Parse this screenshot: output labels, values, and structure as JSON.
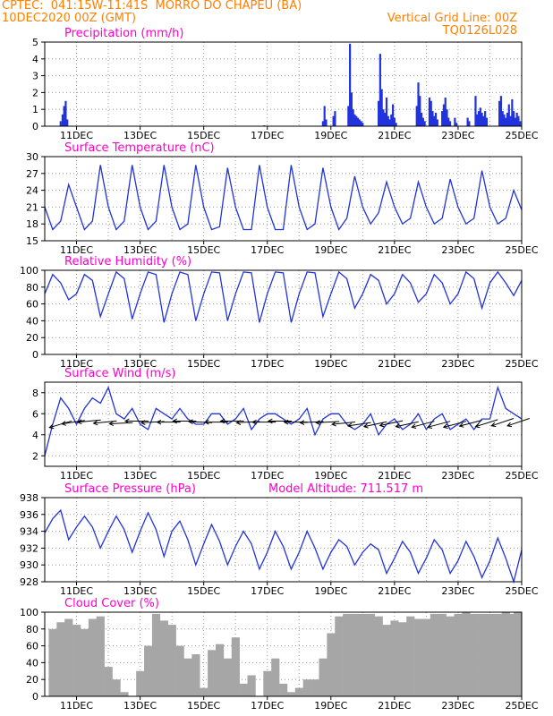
{
  "header": {
    "line1_left": "CPTEC:  041:15W-11:41S  MORRO DO CHAPEU (BA)",
    "line2_left": "10DEC2020 00Z (GMT)",
    "line1_right": "Vertical Grid Line: 00Z",
    "line2_right": "TQ0126L028"
  },
  "colors": {
    "header": "#ff7f00",
    "title": "#ff00cc",
    "line": "#2233dd",
    "bar": "#2233dd",
    "cloud": "#a6a6a6",
    "wind_vector": "#000000"
  },
  "x_axis": {
    "unit": "day of December 2020 (00Z)",
    "range": [
      10,
      25
    ],
    "tick_labels": [
      "11DEC",
      "13DEC",
      "15DEC",
      "17DEC",
      "19DEC",
      "21DEC",
      "23DEC",
      "25DEC"
    ],
    "tick_positions": [
      11,
      13,
      15,
      17,
      19,
      21,
      23,
      25
    ]
  },
  "model_altitude_label": "Model Altitude: 711.517 m",
  "chart_data": [
    {
      "id": "precip",
      "type": "bar",
      "title": "Precipitation (mm/h)",
      "ylim": [
        0,
        5
      ],
      "yticks": [
        0,
        1,
        2,
        3,
        4,
        5
      ],
      "x": [
        10.5,
        10.56,
        10.61,
        10.66,
        10.71,
        16.9,
        18.75,
        18.8,
        18.85,
        19.08,
        19.13,
        19.55,
        19.6,
        19.65,
        19.7,
        19.75,
        19.8,
        19.85,
        19.9,
        19.95,
        20.0,
        20.5,
        20.55,
        20.6,
        20.65,
        20.7,
        20.75,
        20.8,
        20.85,
        20.9,
        20.95,
        21.0,
        21.05,
        21.7,
        21.75,
        21.8,
        21.85,
        21.9,
        21.95,
        22.1,
        22.15,
        22.2,
        22.25,
        22.3,
        22.35,
        22.5,
        22.55,
        22.6,
        22.65,
        22.7,
        22.75,
        22.9,
        22.95,
        23.3,
        23.35,
        23.55,
        23.6,
        23.65,
        23.7,
        23.75,
        23.8,
        23.85,
        23.9,
        24.3,
        24.35,
        24.4,
        24.45,
        24.5,
        24.55,
        24.6,
        24.65,
        24.7,
        24.75,
        24.8,
        24.85,
        24.9,
        24.95
      ],
      "values": [
        0.3,
        0.7,
        1.2,
        1.5,
        0.4,
        0.05,
        0.3,
        1.2,
        0.4,
        0.6,
        0.9,
        1.2,
        4.9,
        2.0,
        1.0,
        0.7,
        0.6,
        0.5,
        0.4,
        0.3,
        0.2,
        1.5,
        4.3,
        2.2,
        1.0,
        0.8,
        1.7,
        0.6,
        0.4,
        0.7,
        1.3,
        0.5,
        0.2,
        1.2,
        2.6,
        1.8,
        0.8,
        0.5,
        0.3,
        1.7,
        1.5,
        0.9,
        0.6,
        0.8,
        0.4,
        0.9,
        1.3,
        1.7,
        1.0,
        0.5,
        0.3,
        0.5,
        0.2,
        0.5,
        0.3,
        1.8,
        0.7,
        0.9,
        1.1,
        0.8,
        0.6,
        0.9,
        0.5,
        1.5,
        1.8,
        0.9,
        0.7,
        0.5,
        0.8,
        1.3,
        0.6,
        1.6,
        0.9,
        0.5,
        0.8,
        0.6,
        0.3
      ]
    },
    {
      "id": "temp",
      "type": "line",
      "title": "Surface Temperature (nC)",
      "ylim": [
        15,
        30
      ],
      "yticks": [
        15,
        18,
        21,
        24,
        27,
        30
      ],
      "x": [
        10.0,
        10.25,
        10.5,
        10.75,
        11.0,
        11.25,
        11.5,
        11.75,
        12.0,
        12.25,
        12.5,
        12.75,
        13.0,
        13.25,
        13.5,
        13.75,
        14.0,
        14.25,
        14.5,
        14.75,
        15.0,
        15.25,
        15.5,
        15.75,
        16.0,
        16.25,
        16.5,
        16.75,
        17.0,
        17.25,
        17.5,
        17.75,
        18.0,
        18.25,
        18.5,
        18.75,
        19.0,
        19.25,
        19.5,
        19.75,
        20.0,
        20.25,
        20.5,
        20.75,
        21.0,
        21.25,
        21.5,
        21.75,
        22.0,
        22.25,
        22.5,
        22.75,
        23.0,
        23.25,
        23.5,
        23.75,
        24.0,
        24.25,
        24.5,
        24.75,
        25.0
      ],
      "values": [
        21,
        17,
        18.5,
        25,
        21,
        17,
        18.5,
        28.5,
        21,
        17,
        18.5,
        28.5,
        21,
        17,
        18.5,
        28.5,
        21,
        17,
        18,
        28.5,
        21,
        17,
        17.5,
        28,
        21,
        17,
        17,
        28.5,
        21,
        17,
        17,
        28.5,
        21,
        17,
        18,
        28,
        21,
        17,
        19,
        26.5,
        21,
        18,
        20,
        25.5,
        21,
        18,
        19,
        25.5,
        21,
        18,
        19,
        26,
        21,
        18,
        19,
        27.5,
        21,
        18,
        19,
        24,
        20.5
      ]
    },
    {
      "id": "rh",
      "type": "line",
      "title": "Relative Humidity (%)",
      "ylim": [
        0,
        100
      ],
      "yticks": [
        0,
        20,
        40,
        60,
        80,
        100
      ],
      "x": [
        10.0,
        10.25,
        10.5,
        10.75,
        11.0,
        11.25,
        11.5,
        11.75,
        12.0,
        12.25,
        12.5,
        12.75,
        13.0,
        13.25,
        13.5,
        13.75,
        14.0,
        14.25,
        14.5,
        14.75,
        15.0,
        15.25,
        15.5,
        15.75,
        16.0,
        16.25,
        16.5,
        16.75,
        17.0,
        17.25,
        17.5,
        17.75,
        18.0,
        18.25,
        18.5,
        18.75,
        19.0,
        19.25,
        19.5,
        19.75,
        20.0,
        20.25,
        20.5,
        20.75,
        21.0,
        21.25,
        21.5,
        21.75,
        22.0,
        22.25,
        22.5,
        22.75,
        23.0,
        23.25,
        23.5,
        23.75,
        24.0,
        24.25,
        24.5,
        24.75,
        25.0
      ],
      "values": [
        72,
        95,
        85,
        65,
        72,
        95,
        88,
        45,
        72,
        98,
        90,
        42,
        72,
        98,
        95,
        38,
        72,
        98,
        95,
        40,
        72,
        98,
        97,
        40,
        72,
        98,
        97,
        38,
        72,
        98,
        97,
        38,
        72,
        98,
        97,
        45,
        72,
        98,
        90,
        55,
        72,
        95,
        88,
        60,
        72,
        95,
        85,
        62,
        72,
        95,
        85,
        60,
        72,
        98,
        90,
        55,
        85,
        98,
        85,
        70,
        88
      ]
    },
    {
      "id": "wind",
      "type": "line",
      "title": "Surface Wind (m/s)",
      "ylim": [
        1,
        9
      ],
      "yticks": [
        2,
        4,
        6,
        8
      ],
      "x": [
        10.0,
        10.25,
        10.5,
        10.75,
        11.0,
        11.25,
        11.5,
        11.75,
        12.0,
        12.25,
        12.5,
        12.75,
        13.0,
        13.25,
        13.5,
        13.75,
        14.0,
        14.25,
        14.5,
        14.75,
        15.0,
        15.25,
        15.5,
        15.75,
        16.0,
        16.25,
        16.5,
        16.75,
        17.0,
        17.25,
        17.5,
        17.75,
        18.0,
        18.25,
        18.5,
        18.75,
        19.0,
        19.25,
        19.5,
        19.75,
        20.0,
        20.25,
        20.5,
        20.75,
        21.0,
        21.25,
        21.5,
        21.75,
        22.0,
        22.25,
        22.5,
        22.75,
        23.0,
        23.25,
        23.5,
        23.75,
        24.0,
        24.25,
        24.5,
        24.75,
        25.0
      ],
      "values": [
        2.0,
        5.0,
        7.5,
        6.5,
        5.0,
        6.5,
        7.5,
        7.0,
        8.5,
        6.0,
        5.5,
        6.5,
        5.0,
        4.5,
        6.5,
        6.0,
        5.5,
        6.5,
        5.5,
        5.0,
        5.0,
        6.0,
        6.0,
        5.0,
        5.5,
        6.5,
        4.5,
        5.5,
        6.0,
        6.0,
        5.5,
        5.0,
        5.5,
        6.5,
        4.0,
        5.5,
        6.0,
        6.0,
        5.0,
        4.5,
        5.0,
        6.0,
        4.0,
        5.0,
        5.5,
        4.5,
        5.0,
        6.0,
        4.5,
        5.5,
        6.0,
        4.5,
        5.0,
        5.5,
        4.5,
        5.5,
        5.5,
        8.5,
        6.5,
        6.0,
        5.5
      ],
      "vectors": {
        "x": [
          10.5,
          10.9,
          11.4,
          11.9,
          12.4,
          12.9,
          13.4,
          13.9,
          14.4,
          14.9,
          15.4,
          15.9,
          16.4,
          16.9,
          17.4,
          17.9,
          18.4,
          18.9,
          19.4,
          19.9,
          20.4,
          20.9,
          21.4,
          21.9,
          22.4,
          22.9,
          23.4,
          23.9,
          24.4,
          24.9
        ],
        "level": [
          5.0,
          5.2,
          5.3,
          5.2,
          5.1,
          5.3,
          5.2,
          5.2,
          5.3,
          5.2,
          5.2,
          5.3,
          5.2,
          5.2,
          5.3,
          5.2,
          5.2,
          5.2,
          5.1,
          5.0,
          5.0,
          5.1,
          5.0,
          5.0,
          5.0,
          5.0,
          5.1,
          5.1,
          5.2,
          5.2
        ],
        "u": [
          -1.0,
          -1.0,
          -1.0,
          -1.0,
          -1.0,
          -1.0,
          -1.0,
          -1.0,
          -1.0,
          -1.0,
          -1.0,
          -1.0,
          -1.0,
          -1.0,
          -1.0,
          -1.0,
          -1.0,
          -1.0,
          -1.0,
          -1.0,
          -0.95,
          -0.95,
          -0.95,
          -0.95,
          -0.95,
          -0.95,
          -0.95,
          -0.95,
          -0.9,
          -0.9
        ],
        "v": [
          -0.3,
          -0.15,
          -0.1,
          -0.1,
          -0.05,
          0.0,
          -0.05,
          0.0,
          0.0,
          0.05,
          0.0,
          0.0,
          -0.05,
          0.0,
          0.0,
          0.0,
          -0.05,
          -0.05,
          -0.1,
          -0.15,
          -0.2,
          -0.2,
          -0.2,
          -0.25,
          -0.25,
          -0.25,
          -0.25,
          -0.3,
          -0.3,
          -0.3
        ]
      }
    },
    {
      "id": "press",
      "type": "line",
      "title": "Surface Pressure (hPa)",
      "ylim": [
        928,
        938
      ],
      "yticks": [
        928,
        930,
        932,
        934,
        936,
        938
      ],
      "x": [
        10.0,
        10.25,
        10.5,
        10.75,
        11.0,
        11.25,
        11.5,
        11.75,
        12.0,
        12.25,
        12.5,
        12.75,
        13.0,
        13.25,
        13.5,
        13.75,
        14.0,
        14.25,
        14.5,
        14.75,
        15.0,
        15.25,
        15.5,
        15.75,
        16.0,
        16.25,
        16.5,
        16.75,
        17.0,
        17.25,
        17.5,
        17.75,
        18.0,
        18.25,
        18.5,
        18.75,
        19.0,
        19.25,
        19.5,
        19.75,
        20.0,
        20.25,
        20.5,
        20.75,
        21.0,
        21.25,
        21.5,
        21.75,
        22.0,
        22.25,
        22.5,
        22.75,
        23.0,
        23.25,
        23.5,
        23.75,
        24.0,
        24.25,
        24.5,
        24.75,
        25.0
      ],
      "values": [
        933.8,
        935.5,
        936.5,
        933.0,
        934.5,
        935.8,
        934.5,
        932.0,
        934.0,
        935.8,
        934.2,
        931.5,
        934.0,
        936.2,
        934.2,
        931.0,
        934.0,
        935.2,
        933.0,
        930.0,
        932.5,
        934.8,
        932.8,
        930.0,
        932.2,
        934.0,
        932.5,
        929.5,
        931.5,
        934.0,
        932.2,
        929.5,
        931.5,
        934.0,
        932.0,
        929.5,
        931.5,
        933.0,
        932.2,
        930.0,
        931.5,
        932.5,
        931.8,
        929.0,
        930.8,
        932.8,
        931.5,
        929.0,
        930.8,
        933.0,
        931.8,
        929.0,
        930.5,
        932.8,
        931.0,
        928.5,
        930.5,
        933.2,
        930.8,
        928.0,
        931.8
      ]
    },
    {
      "id": "cloud",
      "type": "bar",
      "title": "Cloud Cover (%)",
      "ylim": [
        0,
        100
      ],
      "yticks": [
        0,
        20,
        40,
        60,
        80,
        100
      ],
      "x": [
        10.0,
        10.25,
        10.5,
        10.75,
        11.0,
        11.25,
        11.5,
        11.75,
        12.0,
        12.25,
        12.5,
        12.75,
        13.0,
        13.25,
        13.5,
        13.75,
        14.0,
        14.25,
        14.5,
        14.75,
        15.0,
        15.25,
        15.5,
        15.75,
        16.0,
        16.25,
        16.5,
        16.75,
        17.0,
        17.25,
        17.5,
        17.75,
        18.0,
        18.25,
        18.5,
        18.75,
        19.0,
        19.25,
        19.5,
        19.75,
        20.0,
        20.25,
        20.5,
        20.75,
        21.0,
        21.25,
        21.5,
        21.75,
        22.0,
        22.25,
        22.5,
        22.75,
        23.0,
        23.25,
        23.5,
        23.75,
        24.0,
        24.25,
        24.5,
        24.75,
        25.0
      ],
      "values": [
        0,
        80,
        88,
        92,
        85,
        80,
        92,
        95,
        35,
        20,
        5,
        0,
        30,
        60,
        98,
        90,
        85,
        60,
        45,
        50,
        10,
        55,
        62,
        45,
        70,
        15,
        25,
        0,
        30,
        45,
        15,
        5,
        10,
        20,
        20,
        45,
        75,
        95,
        98,
        98,
        98,
        98,
        95,
        85,
        90,
        88,
        95,
        92,
        92,
        98,
        98,
        95,
        98,
        100,
        98,
        98,
        98,
        98,
        100,
        98,
        100
      ]
    }
  ]
}
